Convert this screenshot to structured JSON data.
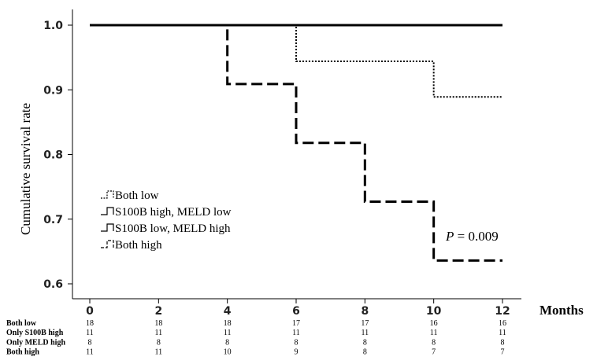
{
  "chart_data": {
    "type": "line",
    "subtype": "kaplan-meier step",
    "ylabel": "Cumulative survival rate",
    "xunit": "Months",
    "xlim": [
      0,
      12
    ],
    "ylim": [
      0.6,
      1.0
    ],
    "x_ticks": [
      0,
      2,
      4,
      6,
      8,
      10,
      12
    ],
    "y_ticks": [
      "0.6",
      "0.7",
      "0.8",
      "0.9",
      "1.0"
    ],
    "grid": false,
    "legend_position": "lower-left",
    "series": [
      {
        "name": "Both low",
        "style": "dotted",
        "steps": [
          [
            0,
            1.0
          ],
          [
            6,
            0.944
          ],
          [
            10,
            0.889
          ],
          [
            12,
            0.889
          ]
        ]
      },
      {
        "name": "S100B high, MELD low",
        "style": "solid",
        "steps": [
          [
            0,
            1.0
          ],
          [
            12,
            1.0
          ]
        ]
      },
      {
        "name": "S100B low, MELD high",
        "style": "solid",
        "steps": [
          [
            0,
            1.0
          ],
          [
            12,
            1.0
          ]
        ]
      },
      {
        "name": "Both high",
        "style": "dashed",
        "steps": [
          [
            0,
            1.0
          ],
          [
            4,
            0.909
          ],
          [
            6,
            0.818
          ],
          [
            8,
            0.727
          ],
          [
            10,
            0.636
          ],
          [
            12,
            0.636
          ]
        ]
      }
    ],
    "annotation": {
      "prefix": "P",
      "text": " = 0.009"
    },
    "risk_table": {
      "times": [
        0,
        2,
        4,
        6,
        8,
        10,
        12
      ],
      "rows": [
        {
          "label": "Both low",
          "values": [
            18,
            18,
            18,
            17,
            17,
            16,
            16
          ]
        },
        {
          "label": "Only S100B high",
          "values": [
            11,
            11,
            11,
            11,
            11,
            11,
            11
          ]
        },
        {
          "label": "Only MELD high",
          "values": [
            8,
            8,
            8,
            8,
            8,
            8,
            8
          ]
        },
        {
          "label": "Both high",
          "values": [
            11,
            11,
            10,
            9,
            8,
            7,
            7
          ]
        }
      ]
    }
  }
}
